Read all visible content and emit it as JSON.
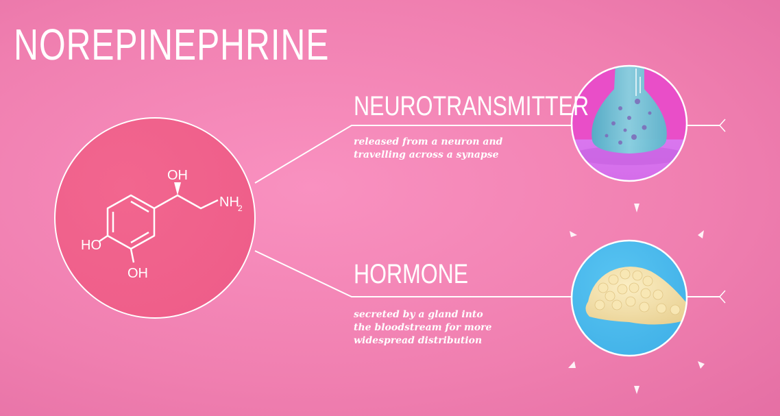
{
  "title": "NOREPINEPHRINE",
  "molecule": {
    "oh_top": "OH",
    "nh": "NH",
    "nh_sub": "2",
    "ho_left": "HO",
    "oh_bottom": "OH"
  },
  "roles": [
    {
      "heading": "NEUROTRANSMITTER",
      "description": "released from a neuron and\ntravelling across a synapse"
    },
    {
      "heading": "HORMONE",
      "description": "secreted by a gland into\nthe bloodstream for more\nwidespread distribution"
    }
  ],
  "icons": {
    "neurotransmitter": "flask-vesicle-icon",
    "hormone": "gland-icon"
  },
  "colors": {
    "background": "#f58bbb",
    "molecule_circle": "#f1618c",
    "neuro_circle_top": "#ea4fc8",
    "neuro_circle_bottom": "#d873ef",
    "flask": "#79c8d6",
    "hormone_circle": "#4cb8ec",
    "gland": "#f3dfaa",
    "line": "#ffffff"
  }
}
